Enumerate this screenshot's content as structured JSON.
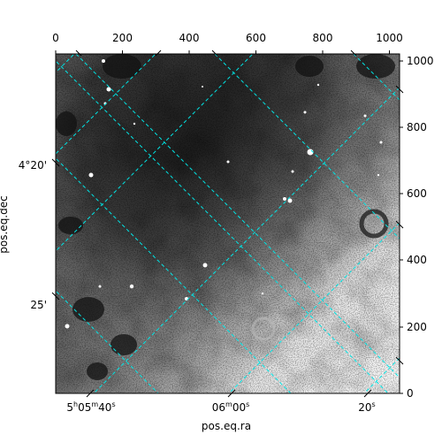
{
  "figure": {
    "xlabel": "pos.eq.ra",
    "ylabel": "pos.eq.dec"
  },
  "chart_data": {
    "type": "heatmap",
    "title": "",
    "colormap": "grayscale",
    "grid": true,
    "grid_color": "#00e5e5",
    "pixel_axes": {
      "x_top": {
        "ticks": [
          0,
          200,
          400,
          600,
          800,
          1000
        ],
        "range": [
          0,
          1030
        ]
      },
      "y_right": {
        "ticks": [
          0,
          200,
          400,
          600,
          800,
          1000
        ],
        "range": [
          0,
          1030
        ]
      }
    },
    "world_axes": {
      "ra_ticks": [
        {
          "base": "5",
          "sup1": "h",
          "mid": "05",
          "sup2": "m",
          "end": "40",
          "sup3": "s"
        },
        {
          "base": "",
          "sup1": "",
          "mid": "06",
          "sup2": "m",
          "end": "00",
          "sup3": "s"
        },
        {
          "base": "",
          "sup1": "",
          "mid": "",
          "sup2": "",
          "end": "20",
          "sup3": "s"
        }
      ],
      "dec_ticks": [
        "4°20'",
        "25'"
      ]
    }
  }
}
